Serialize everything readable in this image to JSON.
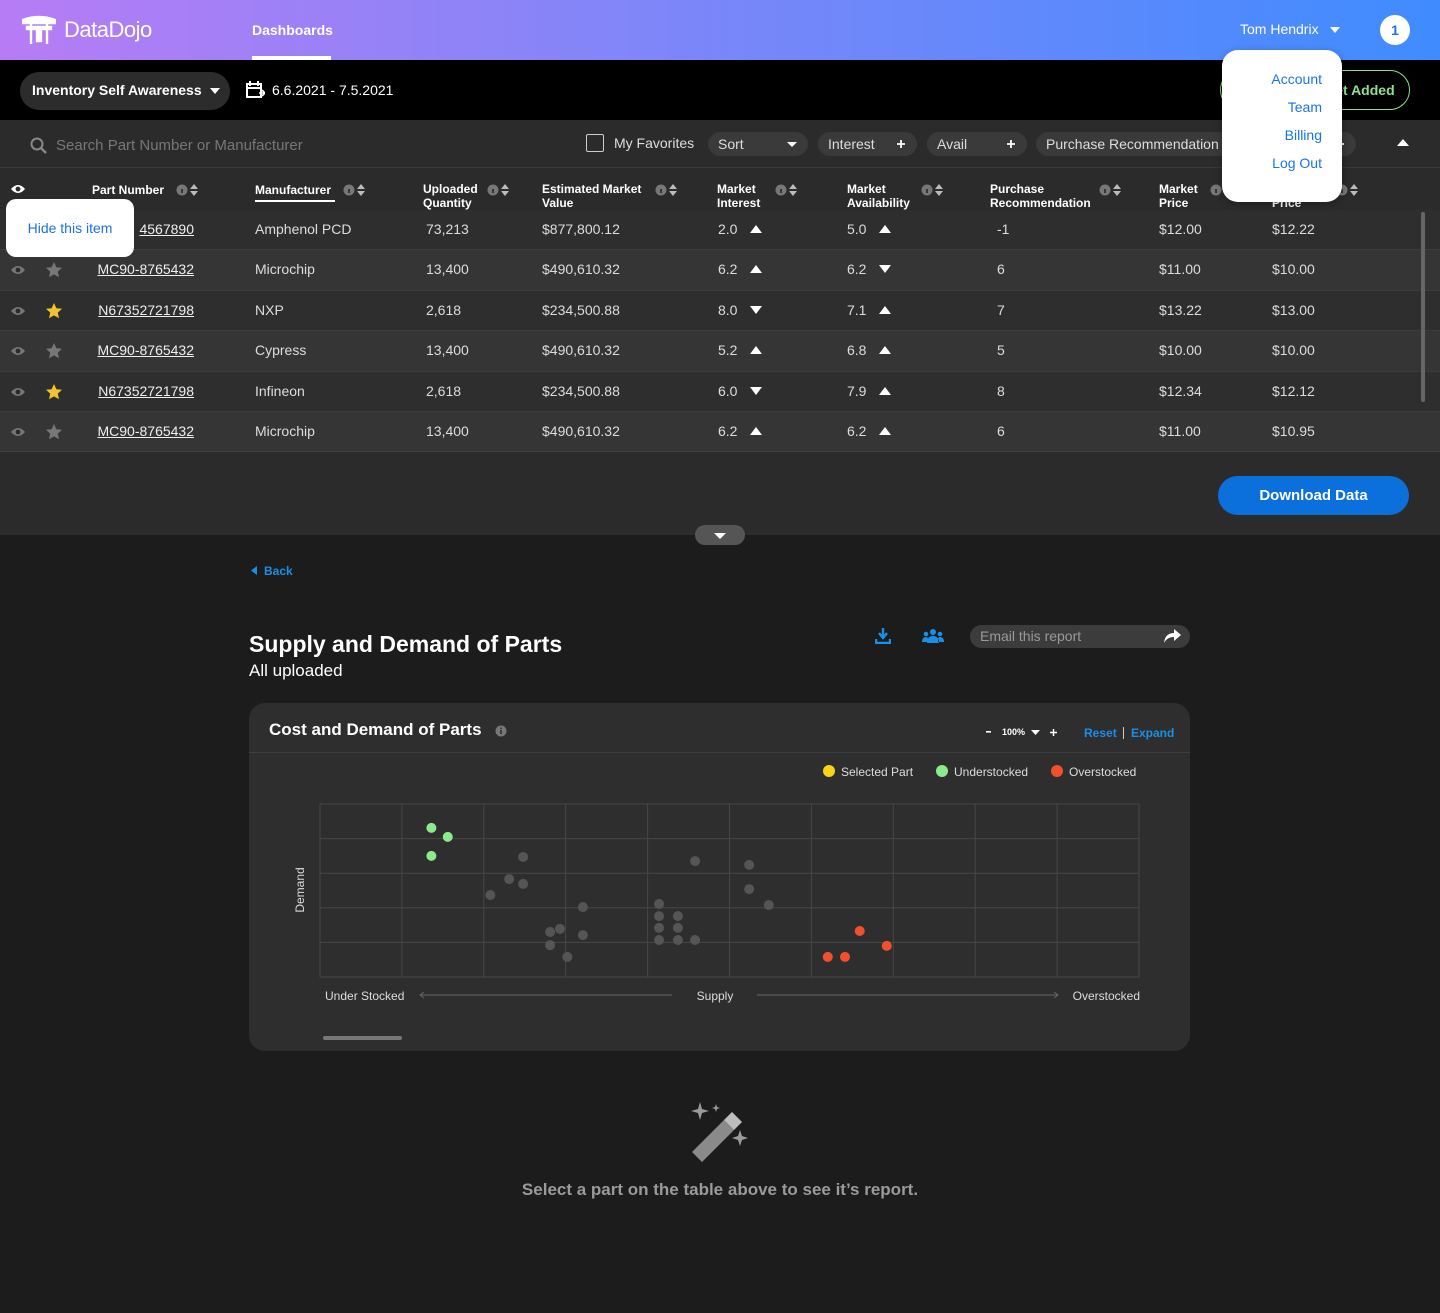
{
  "header": {
    "brand": "DataDojo",
    "nav": "Dashboards",
    "user": "Tom Hendrix",
    "notifications": "1",
    "user_menu": [
      "Account",
      "Team",
      "Billing",
      "Log Out"
    ]
  },
  "toolbar": {
    "dashboard": "Inventory Self Awareness",
    "date_range": "6.6.2021 - 7.5.2021",
    "status_button": "New Data Set Added"
  },
  "filters": {
    "search_placeholder": "Search Part Number or Manufacturer",
    "favorites": "My Favorites",
    "pills": [
      {
        "label": "Sort",
        "icon": "caret"
      },
      {
        "label": "Interest",
        "icon": "plus"
      },
      {
        "label": "Avail",
        "icon": "plus"
      },
      {
        "label": "Purchase Recommendation",
        "icon": "plus"
      }
    ]
  },
  "table": {
    "columns": [
      "Part Number",
      "Manufacturer",
      "Uploaded Quantity",
      "Estimated Market Value",
      "Market Interest",
      "Market Availability",
      "Purchase Recommendation",
      "Market Price",
      "Uploaded Price"
    ],
    "rows": [
      {
        "favorite": false,
        "interest_trend": "up",
        "availability_trend": "up",
        "cells": [
          "4567890",
          "Amphenol PCD",
          "73,213",
          "$877,800.12",
          "2.0",
          "5.0",
          "-1",
          "$12.00",
          "$12.22"
        ]
      },
      {
        "favorite": false,
        "interest_trend": "up",
        "availability_trend": "down",
        "cells": [
          "MC90-8765432",
          "Microchip",
          "13,400",
          "$490,610.32",
          "6.2",
          "6.2",
          "6",
          "$11.00",
          "$10.00"
        ]
      },
      {
        "favorite": true,
        "interest_trend": "down",
        "availability_trend": "up",
        "cells": [
          "N67352721798",
          "NXP",
          "2,618",
          "$234,500.88",
          "8.0",
          "7.1",
          "7",
          "$13.22",
          "$13.00"
        ]
      },
      {
        "favorite": false,
        "interest_trend": "up",
        "availability_trend": "up",
        "cells": [
          "MC90-8765432",
          "Cypress",
          "13,400",
          "$490,610.32",
          "5.2",
          "6.8",
          "5",
          "$10.00",
          "$10.00"
        ]
      },
      {
        "favorite": true,
        "interest_trend": "down",
        "availability_trend": "up",
        "cells": [
          "N67352721798",
          "Infineon",
          "2,618",
          "$234,500.88",
          "6.0",
          "7.9",
          "8",
          "$12.34",
          "$12.12"
        ]
      },
      {
        "favorite": false,
        "interest_trend": "up",
        "availability_trend": "up",
        "cells": [
          "MC90-8765432",
          "Microchip",
          "13,400",
          "$490,610.32",
          "6.2",
          "6.2",
          "6",
          "$11.00",
          "$10.95"
        ]
      }
    ]
  },
  "tooltip": "Hide this item",
  "download": "Download Data",
  "report": {
    "back": "Back",
    "title": "Supply and Demand of Parts",
    "subtitle": "All uploaded",
    "email_placeholder": "Email this report",
    "card_title": "Cost and Demand of Parts",
    "zoom": "100%",
    "reset": "Reset",
    "expand": "Expand",
    "chart": {
      "type": "scatter",
      "y_label": "Demand",
      "x_label": "Supply",
      "x_start_label": "Under Stocked",
      "x_end_label": "Overstocked",
      "xlim": [
        0,
        10
      ],
      "ylim": [
        0,
        5
      ],
      "xticks": [
        0,
        1,
        2,
        3,
        4,
        5,
        6,
        7,
        8,
        9,
        10
      ],
      "yticks": [
        0,
        1,
        2,
        3,
        4,
        5
      ],
      "grid": true,
      "series": [
        {
          "name": "Selected Part",
          "color": "#f7d417",
          "x": [],
          "y": []
        },
        {
          "name": "Understocked",
          "color": "#8ee88e",
          "x": [
            1.36,
            1.56,
            1.36
          ],
          "y": [
            4.31,
            4.05,
            3.5
          ]
        },
        {
          "name": "Overstocked",
          "color": "#f0502e",
          "x": [
            6.2,
            6.41,
            6.59,
            6.92
          ],
          "y": [
            0.58,
            0.58,
            1.33,
            0.9
          ]
        }
      ],
      "unlabeled_points": {
        "color": "#555555",
        "x": [
          2.48,
          2.31,
          2.48,
          2.08,
          3.21,
          2.93,
          2.81,
          3.21,
          2.81,
          3.02,
          4.14,
          4.37,
          4.14,
          4.14,
          4.37,
          4.14,
          4.37,
          4.58,
          4.58,
          5.24,
          5.24,
          5.48
        ],
        "y": [
          3.47,
          2.83,
          2.69,
          2.37,
          2.02,
          1.39,
          1.3,
          1.21,
          0.92,
          0.58,
          2.11,
          1.76,
          1.76,
          1.42,
          1.42,
          1.07,
          1.07,
          1.07,
          3.35,
          3.24,
          2.54,
          2.08
        ]
      }
    }
  },
  "empty_state": "Select a part on the table above to see it’s report."
}
